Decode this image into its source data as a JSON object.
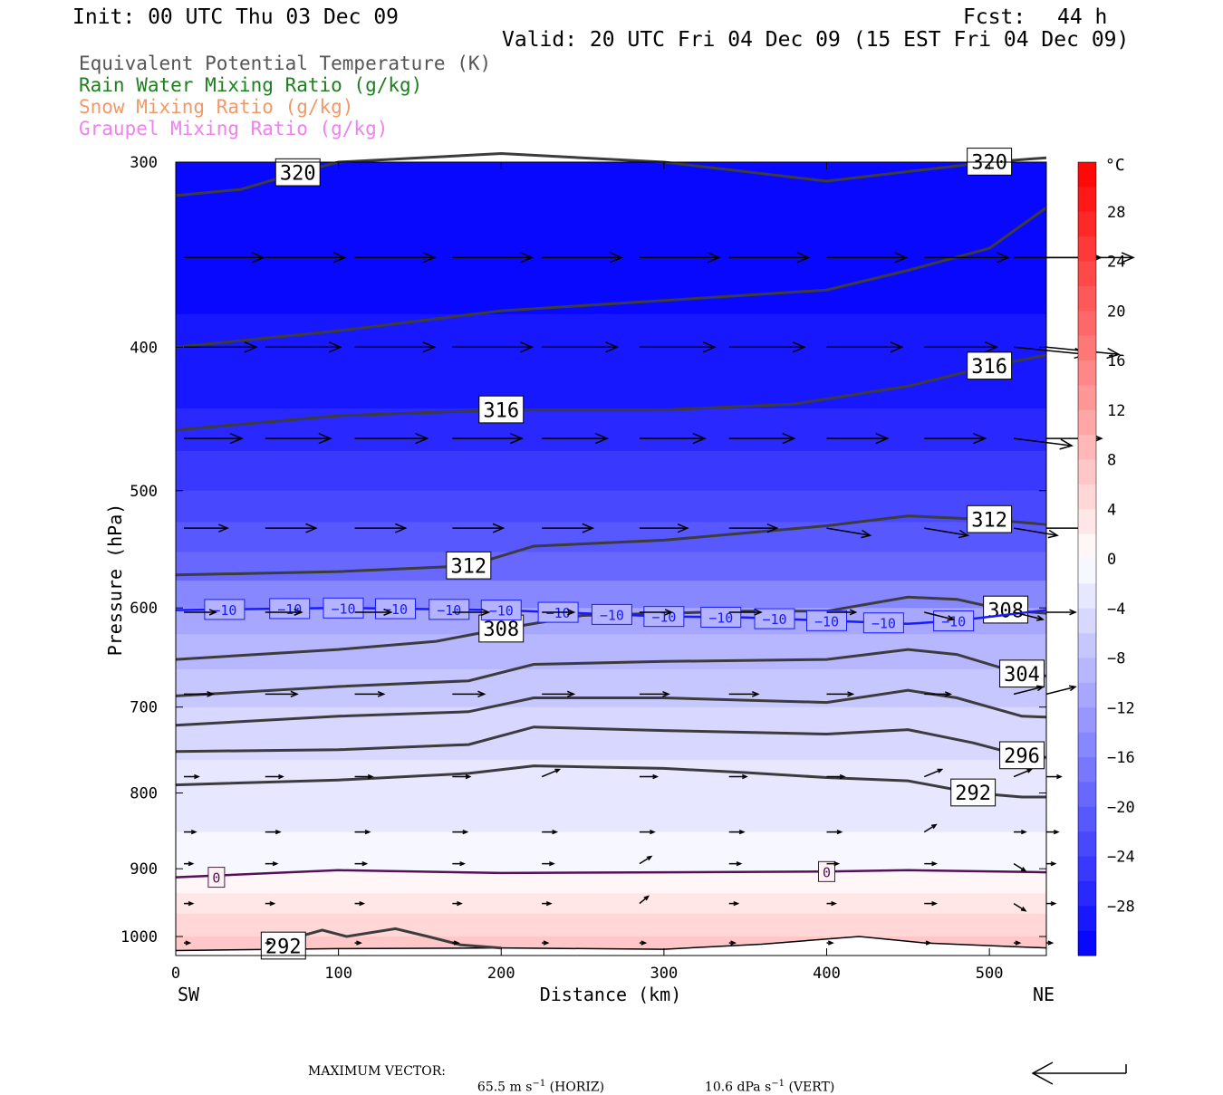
{
  "header": {
    "init": "Init: 00 UTC Thu 03 Dec 09",
    "fcst_label": "Fcst:",
    "fcst_value": "44 h",
    "valid": "Valid: 20 UTC Fri 04 Dec 09 (15 EST Fri 04 Dec 09)"
  },
  "legend": [
    {
      "label": "Equivalent Potential Temperature (K)",
      "color": "#555555"
    },
    {
      "label": "Rain Water Mixing Ratio (g/kg)",
      "color": "#1e7d1e"
    },
    {
      "label": "Snow Mixing Ratio (g/kg)",
      "color": "#f0996a"
    },
    {
      "label": "Graupel Mixing Ratio (g/kg)",
      "color": "#ee82ee"
    }
  ],
  "chart_data": {
    "type": "cross-section",
    "xlabel": "Distance (km)",
    "ylabel": "Pressure (hPa)",
    "xlim": [
      0,
      535
    ],
    "ylim": [
      1030,
      300
    ],
    "y_scale": "log",
    "x_ticks": [
      0,
      100,
      200,
      300,
      400,
      500
    ],
    "y_ticks": [
      300,
      400,
      500,
      600,
      700,
      800,
      900,
      1000
    ],
    "x_end_labels": {
      "left": "SW",
      "right": "NE"
    },
    "colorbar": {
      "unit": "°C",
      "tick_labels": [
        "28",
        "24",
        "20",
        "16",
        "12",
        "8",
        "4",
        "0",
        "−4",
        "−8",
        "−12",
        "−16",
        "−20",
        "−24",
        "−28"
      ],
      "levels": [
        -32,
        -30,
        -28,
        -26,
        -24,
        -22,
        -20,
        -18,
        -16,
        -14,
        -12,
        -10,
        -8,
        -6,
        -4,
        -2,
        0,
        2,
        4,
        6,
        8,
        10,
        12,
        14,
        16,
        18,
        20,
        22,
        24,
        26,
        28,
        30,
        32
      ]
    },
    "temperature_bands": [
      {
        "p_top": 300,
        "p_bot": 380,
        "temp": -31
      },
      {
        "p_top": 380,
        "p_bot": 440,
        "temp": -29
      },
      {
        "p_top": 440,
        "p_bot": 470,
        "temp": -27
      },
      {
        "p_top": 470,
        "p_bot": 500,
        "temp": -25
      },
      {
        "p_top": 500,
        "p_bot": 525,
        "temp": -23
      },
      {
        "p_top": 525,
        "p_bot": 550,
        "temp": -21
      },
      {
        "p_top": 550,
        "p_bot": 575,
        "temp": -19
      },
      {
        "p_top": 575,
        "p_bot": 600,
        "temp": -15
      },
      {
        "p_top": 600,
        "p_bot": 625,
        "temp": -11
      },
      {
        "p_top": 625,
        "p_bot": 660,
        "temp": -9
      },
      {
        "p_top": 660,
        "p_bot": 700,
        "temp": -7
      },
      {
        "p_top": 700,
        "p_bot": 760,
        "temp": -5
      },
      {
        "p_top": 760,
        "p_bot": 850,
        "temp": -3
      },
      {
        "p_top": 850,
        "p_bot": 905,
        "temp": -1
      },
      {
        "p_top": 905,
        "p_bot": 935,
        "temp": 1
      },
      {
        "p_top": 935,
        "p_bot": 965,
        "temp": 3
      },
      {
        "p_top": 965,
        "p_bot": 1000,
        "temp": 5
      },
      {
        "p_top": 1000,
        "p_bot": 1030,
        "temp": 7
      }
    ],
    "theta_e_contours": [
      {
        "value": 320,
        "labels": [
          "320",
          "320"
        ],
        "points": [
          [
            0,
            316
          ],
          [
            40,
            313
          ],
          [
            75,
            305
          ],
          [
            100,
            300
          ],
          [
            200,
            296
          ],
          [
            300,
            300
          ],
          [
            400,
            309
          ],
          [
            500,
            300
          ],
          [
            535,
            298
          ]
        ]
      },
      {
        "value": 320,
        "points": [
          [
            0,
            400
          ],
          [
            100,
            390
          ],
          [
            200,
            378
          ],
          [
            300,
            372
          ],
          [
            400,
            366
          ],
          [
            450,
            355
          ],
          [
            500,
            343
          ],
          [
            535,
            322
          ]
        ]
      },
      {
        "value": 316,
        "labels": [
          "316",
          "316"
        ],
        "points": [
          [
            0,
            455
          ],
          [
            100,
            445
          ],
          [
            200,
            441
          ],
          [
            300,
            441
          ],
          [
            380,
            437
          ],
          [
            450,
            425
          ],
          [
            500,
            412
          ],
          [
            535,
            405
          ]
        ]
      },
      {
        "value": 312,
        "labels": [
          "312",
          "312"
        ],
        "points": [
          [
            0,
            570
          ],
          [
            100,
            567
          ],
          [
            180,
            562
          ],
          [
            220,
            545
          ],
          [
            300,
            540
          ],
          [
            400,
            528
          ],
          [
            450,
            520
          ],
          [
            500,
            523
          ],
          [
            535,
            527
          ]
        ]
      },
      {
        "value": 308,
        "labels": [
          "308",
          "308"
        ],
        "points": [
          [
            0,
            650
          ],
          [
            100,
            640
          ],
          [
            160,
            632
          ],
          [
            200,
            620
          ],
          [
            250,
            607
          ],
          [
            300,
            605
          ],
          [
            350,
            603
          ],
          [
            400,
            603
          ],
          [
            450,
            590
          ],
          [
            480,
            592
          ],
          [
            510,
            602
          ],
          [
            535,
            605
          ]
        ]
      },
      {
        "value": 304,
        "labels": [
          "304"
        ],
        "points": [
          [
            0,
            688
          ],
          [
            100,
            678
          ],
          [
            180,
            672
          ],
          [
            220,
            655
          ],
          [
            300,
            652
          ],
          [
            400,
            650
          ],
          [
            450,
            640
          ],
          [
            480,
            645
          ],
          [
            520,
            665
          ],
          [
            535,
            667
          ]
        ]
      },
      {
        "value": 300,
        "points": [
          [
            0,
            720
          ],
          [
            100,
            710
          ],
          [
            180,
            705
          ],
          [
            220,
            690
          ],
          [
            300,
            690
          ],
          [
            400,
            695
          ],
          [
            450,
            682
          ],
          [
            480,
            690
          ],
          [
            520,
            710
          ],
          [
            535,
            711
          ]
        ]
      },
      {
        "value": 296,
        "labels": [
          "296"
        ],
        "points": [
          [
            0,
            750
          ],
          [
            100,
            748
          ],
          [
            180,
            742
          ],
          [
            220,
            722
          ],
          [
            300,
            726
          ],
          [
            400,
            730
          ],
          [
            450,
            725
          ],
          [
            490,
            740
          ],
          [
            520,
            755
          ],
          [
            535,
            757
          ]
        ]
      },
      {
        "value": 292,
        "labels": [
          "292"
        ],
        "points": [
          [
            0,
            790
          ],
          [
            100,
            784
          ],
          [
            180,
            776
          ],
          [
            220,
            767
          ],
          [
            300,
            770
          ],
          [
            350,
            775
          ],
          [
            400,
            781
          ],
          [
            450,
            785
          ],
          [
            490,
            800
          ],
          [
            520,
            805
          ],
          [
            535,
            805
          ]
        ]
      },
      {
        "value": 292,
        "labels": [
          "292"
        ],
        "points": [
          [
            55,
            1015
          ],
          [
            90,
            990
          ],
          [
            105,
            1000
          ],
          [
            135,
            988
          ],
          [
            155,
            1000
          ],
          [
            175,
            1013
          ],
          [
            200,
            1018
          ]
        ]
      }
    ],
    "temperature_contours": [
      {
        "value": -10,
        "color": "#1a1aff",
        "label": "−10",
        "points": [
          [
            0,
            602
          ],
          [
            100,
            600
          ],
          [
            200,
            602
          ],
          [
            250,
            605
          ],
          [
            300,
            608
          ],
          [
            350,
            609
          ],
          [
            400,
            612
          ],
          [
            450,
            615
          ],
          [
            480,
            612
          ],
          [
            535,
            602
          ]
        ]
      },
      {
        "value": 0,
        "color": "#551155",
        "label": "0",
        "points": [
          [
            0,
            912
          ],
          [
            60,
            906
          ],
          [
            100,
            902
          ],
          [
            200,
            906
          ],
          [
            300,
            905
          ],
          [
            400,
            904
          ],
          [
            450,
            902
          ],
          [
            535,
            905
          ]
        ]
      }
    ],
    "terrain": [
      [
        0,
        1022
      ],
      [
        100,
        1019
      ],
      [
        200,
        1018
      ],
      [
        300,
        1020
      ],
      [
        360,
        1012
      ],
      [
        420,
        1000
      ],
      [
        460,
        1010
      ],
      [
        535,
        1018
      ]
    ],
    "vectors": [
      {
        "p": 348,
        "u": [
          55,
          55,
          55,
          55,
          55,
          55,
          55,
          55,
          58,
          60,
          60
        ],
        "w": [
          0,
          0,
          0,
          0,
          0,
          0,
          0,
          0,
          0,
          0,
          0
        ]
      },
      {
        "p": 400,
        "u": [
          50,
          52,
          55,
          55,
          52,
          52,
          52,
          52,
          50,
          50,
          50
        ],
        "w": [
          0,
          0,
          0,
          0,
          0,
          0,
          0,
          0,
          0,
          -2,
          -2
        ]
      },
      {
        "p": 461,
        "u": [
          40,
          45,
          50,
          48,
          45,
          45,
          45,
          42,
          42,
          40,
          38
        ],
        "w": [
          0,
          0,
          0,
          0,
          0,
          0,
          0,
          0,
          0,
          -2,
          0
        ]
      },
      {
        "p": 530,
        "u": [
          30,
          35,
          35,
          35,
          35,
          33,
          33,
          30,
          30,
          30,
          28
        ],
        "w": [
          0,
          0,
          0,
          0,
          0,
          0,
          0,
          -2,
          -2,
          -2,
          0
        ]
      },
      {
        "p": 604,
        "u": [
          22,
          25,
          25,
          25,
          22,
          22,
          22,
          20,
          20,
          20,
          20
        ],
        "w": [
          0,
          0,
          0,
          0,
          0,
          0,
          0,
          0,
          -2,
          -2,
          0
        ]
      },
      {
        "p": 686,
        "u": [
          20,
          22,
          20,
          22,
          22,
          20,
          20,
          18,
          18,
          20,
          20
        ],
        "w": [
          0,
          0,
          0,
          0,
          0,
          0,
          0,
          0,
          0,
          2,
          2
        ]
      },
      {
        "p": 780,
        "u": [
          10,
          12,
          12,
          12,
          12,
          12,
          12,
          12,
          12,
          12,
          10
        ],
        "w": [
          0,
          0,
          0,
          0,
          2,
          0,
          0,
          0,
          2,
          2,
          0
        ]
      },
      {
        "p": 850,
        "u": [
          8,
          10,
          10,
          10,
          10,
          10,
          10,
          10,
          8,
          8,
          8
        ],
        "w": [
          0,
          0,
          0,
          0,
          0,
          0,
          0,
          0,
          2,
          0,
          0
        ]
      },
      {
        "p": 893,
        "u": [
          6,
          8,
          8,
          8,
          8,
          8,
          8,
          8,
          8,
          8,
          6
        ],
        "w": [
          0,
          0,
          0,
          0,
          0,
          2,
          0,
          0,
          0,
          -2,
          0
        ]
      },
      {
        "p": 950,
        "u": [
          6,
          6,
          6,
          6,
          6,
          6,
          6,
          6,
          8,
          8,
          6
        ],
        "w": [
          0,
          0,
          0,
          0,
          0,
          2,
          0,
          0,
          0,
          -2,
          0
        ]
      },
      {
        "p": 1010,
        "u": [
          4,
          4,
          4,
          4,
          4,
          4,
          4,
          4,
          4,
          4,
          4
        ],
        "w": [
          0,
          0,
          0,
          0,
          0,
          0,
          0,
          0,
          0,
          0,
          0
        ]
      }
    ],
    "vector_x_positions": [
      5,
      55,
      110,
      170,
      225,
      285,
      340,
      400,
      460,
      515,
      535
    ]
  },
  "footer": {
    "max_vector_label": "MAXIMUM VECTOR:",
    "horiz": "65.5 m s",
    "horiz_exp": "−1",
    "horiz_suffix": " (HORIZ)",
    "vert": "10.6 dPa s",
    "vert_exp": "−1",
    "vert_suffix": " (VERT)"
  }
}
